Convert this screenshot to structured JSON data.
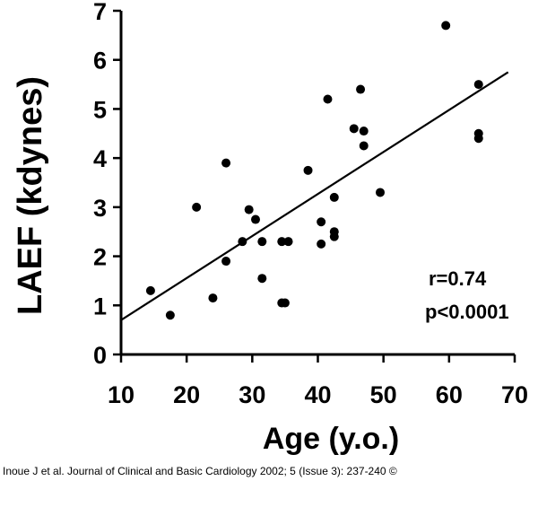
{
  "chart_data": {
    "type": "scatter",
    "xlabel": "Age (y.o.)",
    "ylabel": "LAEF (kdynes)",
    "xlim": [
      10,
      70
    ],
    "ylim": [
      0,
      7
    ],
    "xticks": [
      "10",
      "20",
      "30",
      "40",
      "50",
      "60",
      "70"
    ],
    "yticks": [
      "0",
      "1",
      "2",
      "3",
      "4",
      "5",
      "6",
      "7"
    ],
    "points": [
      {
        "x": 14.5,
        "y": 1.3
      },
      {
        "x": 17.5,
        "y": 0.8
      },
      {
        "x": 21.5,
        "y": 3.0
      },
      {
        "x": 24.0,
        "y": 1.15
      },
      {
        "x": 26.0,
        "y": 3.9
      },
      {
        "x": 26.0,
        "y": 1.9
      },
      {
        "x": 28.5,
        "y": 2.3
      },
      {
        "x": 29.5,
        "y": 2.95
      },
      {
        "x": 30.5,
        "y": 2.75
      },
      {
        "x": 31.5,
        "y": 2.3
      },
      {
        "x": 31.5,
        "y": 1.55
      },
      {
        "x": 34.5,
        "y": 2.3
      },
      {
        "x": 34.5,
        "y": 1.05
      },
      {
        "x": 35.0,
        "y": 1.05
      },
      {
        "x": 35.5,
        "y": 2.3
      },
      {
        "x": 38.5,
        "y": 3.75
      },
      {
        "x": 40.5,
        "y": 2.7
      },
      {
        "x": 40.5,
        "y": 2.25
      },
      {
        "x": 41.5,
        "y": 5.2
      },
      {
        "x": 42.5,
        "y": 3.2
      },
      {
        "x": 42.5,
        "y": 2.5
      },
      {
        "x": 42.5,
        "y": 2.4
      },
      {
        "x": 45.5,
        "y": 4.6
      },
      {
        "x": 46.5,
        "y": 5.4
      },
      {
        "x": 47.0,
        "y": 4.55
      },
      {
        "x": 47.0,
        "y": 4.25
      },
      {
        "x": 49.5,
        "y": 3.3
      },
      {
        "x": 59.5,
        "y": 6.7
      },
      {
        "x": 64.5,
        "y": 5.5
      },
      {
        "x": 64.5,
        "y": 4.5
      },
      {
        "x": 64.5,
        "y": 4.4
      }
    ],
    "regression_line": {
      "x": [
        10,
        69
      ],
      "y": [
        0.7,
        5.75
      ]
    },
    "stats": {
      "r": "r=0.74",
      "p": "p<0.0001"
    },
    "grid": false
  },
  "citation": "Inoue J et al. Journal of Clinical and Basic Cardiology 2002; 5 (Issue 3): 237-240 ©"
}
